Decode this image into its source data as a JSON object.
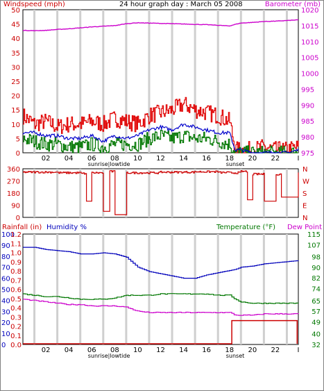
{
  "colors": {
    "wind": "#e00000",
    "wind_avg": "#0000cc",
    "wind_low": "#007700",
    "baro": "#cc00cc",
    "direction": "#cc0000",
    "humidity": "#0000bb",
    "temperature": "#007700",
    "dewpoint": "#cc00cc",
    "rain": "#cc0000",
    "grid": "#cfcfcf",
    "axis_text_red": "#cc0000",
    "axis_text_blue": "#0000bb",
    "axis_text_green": "#007700",
    "axis_text_magenta": "#cc00cc"
  },
  "chart_data": [
    {
      "type": "line",
      "title": "24 hour graph day : March 05 2008",
      "left_label": "Windspeed (mph)",
      "right_label": "Barometer (mb)",
      "x_ticks": [
        "02",
        "04",
        "06",
        "08",
        "10",
        "12",
        "14",
        "16",
        "18",
        "20",
        "22",
        "I"
      ],
      "x_annotations": [
        "sunrise",
        "lowtide",
        "sunset"
      ],
      "ylim_left": [
        0,
        50
      ],
      "left_ticks": [
        0,
        5,
        10,
        15,
        20,
        25,
        30,
        35,
        40,
        45,
        50
      ],
      "ylim_right": [
        975,
        1020
      ],
      "right_ticks": [
        975,
        980,
        985,
        990,
        995,
        1000,
        1005,
        1010,
        1015,
        1020
      ],
      "x_hours": [
        0,
        1,
        2,
        3,
        4,
        5,
        6,
        7,
        8,
        9,
        10,
        11,
        12,
        13,
        14,
        15,
        16,
        17,
        18,
        18.5,
        19,
        20,
        21,
        22,
        23,
        24
      ],
      "series": [
        {
          "name": "Windspeed",
          "axis": "left",
          "values": [
            13,
            10,
            11,
            9,
            10,
            10,
            11,
            10,
            12,
            11,
            10,
            13,
            14,
            15,
            17,
            15,
            14,
            13,
            11,
            1,
            1,
            1,
            2,
            1,
            1,
            2
          ]
        },
        {
          "name": "Average",
          "axis": "left",
          "values": [
            7,
            7,
            6,
            6,
            5,
            5,
            6,
            4,
            6,
            5,
            6,
            8,
            9,
            8,
            10,
            9,
            8,
            7,
            7,
            1,
            1,
            0,
            0,
            0,
            0,
            1
          ]
        },
        {
          "name": "Low",
          "axis": "left",
          "values": [
            5,
            4,
            3,
            3,
            2,
            2,
            3,
            2,
            3,
            3,
            3,
            5,
            6,
            5,
            6,
            5,
            5,
            4,
            3,
            0,
            0,
            0,
            0,
            0,
            0,
            0
          ]
        },
        {
          "name": "Barometer",
          "axis": "right",
          "values": [
            1013.5,
            1013.4,
            1013.5,
            1013.8,
            1014,
            1014.3,
            1014.6,
            1014.8,
            1015,
            1015.6,
            1015.9,
            1015.8,
            1015.7,
            1015.6,
            1015.5,
            1015.4,
            1015.3,
            1015.1,
            1014.9,
            1015.4,
            1015.8,
            1016,
            1016.3,
            1016.4,
            1016.6,
            1016.8
          ]
        }
      ]
    },
    {
      "type": "line",
      "left_ticks": [
        0,
        90,
        180,
        270,
        360
      ],
      "right_labels": [
        "N",
        "W",
        "S",
        "E",
        "N"
      ],
      "ylim": [
        0,
        360
      ],
      "x_hours": [
        0,
        3,
        5,
        5.5,
        6,
        7,
        7.5,
        8,
        9,
        12,
        15,
        17,
        18,
        19,
        19.5,
        20,
        20.5,
        21,
        22,
        22.5,
        23,
        24
      ],
      "series": [
        {
          "name": "Direction",
          "values": [
            335,
            330,
            325,
            120,
            330,
            45,
            340,
            20,
            330,
            335,
            338,
            332,
            330,
            340,
            130,
            320,
            320,
            120,
            320,
            150,
            150,
            335
          ]
        }
      ]
    },
    {
      "type": "line",
      "left_label_1": "Rainfall (in)",
      "left_label_2": "Humidity %",
      "right_label_1": "Temperature (°F)",
      "right_label_2": "Dew Point",
      "x_ticks": [
        "02",
        "04",
        "06",
        "08",
        "10",
        "12",
        "14",
        "16",
        "18",
        "20",
        "22",
        "I"
      ],
      "x_annotations": [
        "sunrise",
        "lowtide",
        "sunset"
      ],
      "humidity_ticks": [
        0,
        10,
        20,
        30,
        40,
        50,
        60,
        70,
        80,
        90,
        100
      ],
      "rain_ticks": [
        0.0,
        0.1,
        0.2,
        0.3,
        0.4,
        0.5,
        0.6,
        0.7,
        0.8,
        0.9,
        1.0,
        1.1,
        1.2
      ],
      "temp_ticks": [
        32,
        40,
        49,
        57,
        65,
        74,
        82,
        90,
        98,
        107,
        115
      ],
      "ylim_humidity": [
        0,
        100
      ],
      "ylim_temp": [
        32,
        115
      ],
      "x_hours": [
        0,
        1,
        2,
        3,
        4,
        5,
        6,
        7,
        8,
        9,
        10,
        11,
        12,
        13,
        14,
        15,
        16,
        17,
        18,
        18.5,
        19,
        20,
        21,
        22,
        23,
        24
      ],
      "series": [
        {
          "name": "Humidity",
          "axis": "humidity",
          "values": [
            88,
            88,
            86,
            85,
            84,
            82,
            82,
            83,
            82,
            79,
            70,
            66,
            64,
            62,
            60,
            60,
            63,
            65,
            67,
            68,
            70,
            71,
            73,
            74,
            75,
            76
          ]
        },
        {
          "name": "Temperature",
          "axis": "temp",
          "values": [
            70,
            69,
            68,
            68,
            67,
            66,
            66,
            66,
            67,
            69,
            69,
            69,
            70,
            70,
            70,
            70,
            70,
            69,
            69,
            66,
            64,
            63,
            63,
            63,
            63,
            63
          ]
        },
        {
          "name": "Dew Point",
          "axis": "temp",
          "values": [
            66,
            65,
            64,
            63,
            62,
            62,
            61,
            61,
            61,
            60,
            57,
            56,
            56,
            56,
            56,
            56,
            56,
            56,
            56,
            54,
            54,
            54,
            55,
            55,
            55,
            55
          ]
        },
        {
          "name": "Rainfall",
          "axis": "rain",
          "values": [
            0,
            0,
            0,
            0,
            0,
            0,
            0,
            0,
            0,
            0,
            0,
            0,
            0,
            0,
            0,
            0,
            0,
            0,
            0,
            0.26,
            0.26,
            0.26,
            0.26,
            0.26,
            0.26,
            0.26
          ]
        }
      ]
    }
  ]
}
